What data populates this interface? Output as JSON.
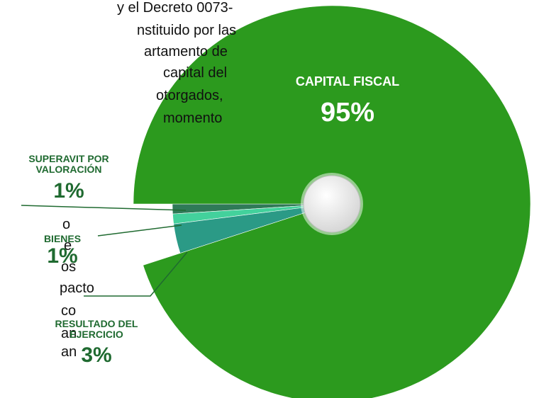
{
  "chart_data": {
    "type": "pie",
    "categories": [
      "CAPITAL FISCAL",
      "SUPERAVIT POR\nVALORACIÓN",
      "BIENES",
      "RESULTADO DEL\nEJERCICIO"
    ],
    "values": [
      95,
      1,
      1,
      3
    ],
    "value_labels": [
      "95%",
      "1%",
      "1%",
      "3%"
    ],
    "colors": [
      "#2c9a1e",
      "#2f7a58",
      "#43d19c",
      "#2b9a86"
    ],
    "document_text": [
      "y el Decreto 0073-",
      "nstituido por las",
      "artamento de",
      "capital  del",
      "otorgados,",
      "momento",
      "o",
      "e",
      "os",
      "pacto",
      "co",
      "an",
      "an"
    ]
  }
}
